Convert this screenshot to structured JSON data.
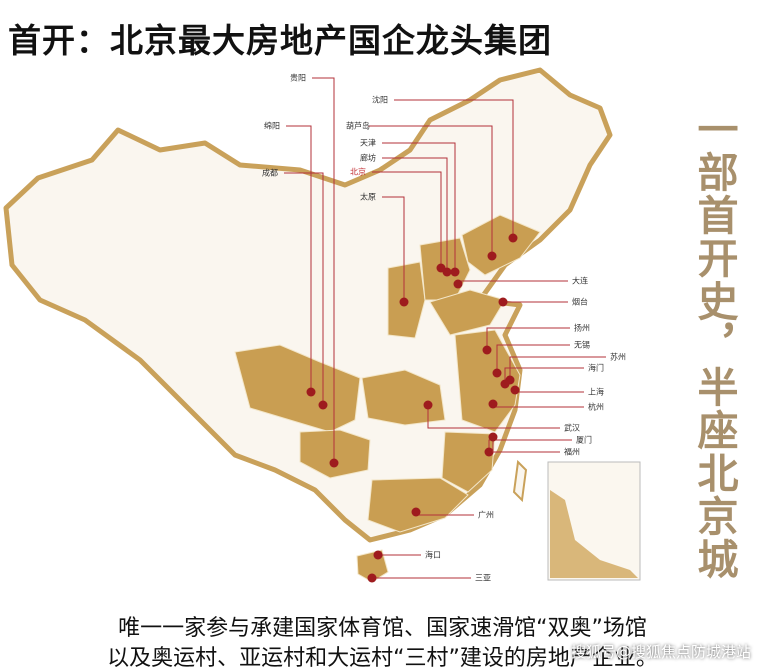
{
  "header": {
    "title": "首开：北京最大房地产国企龙头集团"
  },
  "map": {
    "cities": [
      "贵阳",
      "绵阳",
      "成都",
      "沈阳",
      "葫芦岛",
      "天津",
      "廊坊",
      "北京",
      "太原",
      "大连",
      "烟台",
      "扬州",
      "无锡",
      "苏州",
      "海门",
      "上海",
      "杭州",
      "武汉",
      "厦门",
      "福州",
      "广州",
      "海口",
      "三亚"
    ]
  },
  "slogan": "一部首开史，半座北京城",
  "caption": [
    "唯一一家参与承建国家体育馆、国家速滑馆“双奥”场馆",
    "以及奥运村、亚运村和大运村“三村”建设的房地产企业。"
  ],
  "watermark": "搜狐号@搜狐焦点防城港站"
}
